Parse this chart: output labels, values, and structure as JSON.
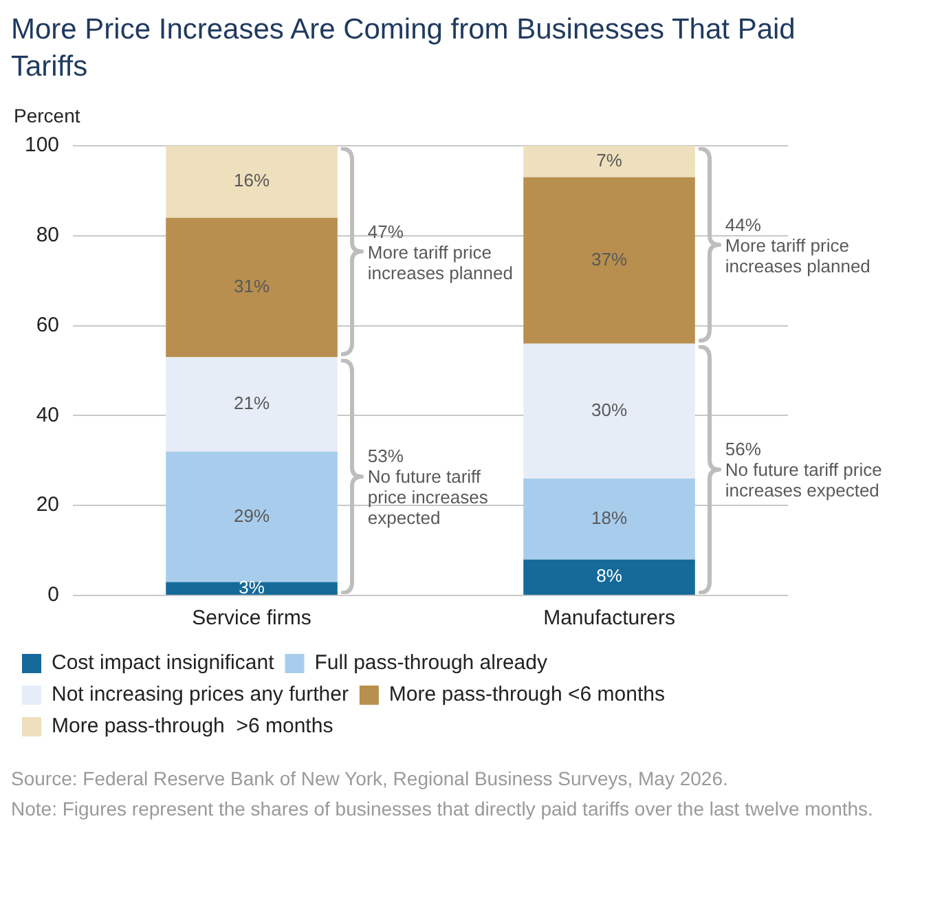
{
  "chart_data": {
    "type": "bar",
    "title": "More Price Increases Are Coming from Businesses That Paid Tariffs",
    "ylabel": "Percent",
    "categories": [
      "Service firms",
      "Manufacturers"
    ],
    "stacked": true,
    "ylim": [
      0,
      100
    ],
    "yticks": [
      0,
      20,
      40,
      60,
      80,
      100
    ],
    "grid": "y",
    "legend": "bottom",
    "series": [
      {
        "name": "Cost impact insignificant",
        "color": "#156a9a",
        "values": [
          3,
          8
        ],
        "value_labels": [
          "3%",
          "8%"
        ]
      },
      {
        "name": "Full pass-through already",
        "color": "#a8cdec",
        "values": [
          29,
          18
        ],
        "value_labels": [
          "29%",
          "18%"
        ]
      },
      {
        "name": "Not increasing prices any further",
        "color": "#e7edf7",
        "values": [
          21,
          30
        ],
        "value_labels": [
          "21%",
          "30%"
        ]
      },
      {
        "name": "More pass-through <6 months",
        "color": "#b88f4e",
        "values": [
          31,
          37
        ],
        "value_labels": [
          "31%",
          "37%"
        ]
      },
      {
        "name": "More pass-through  >6 months",
        "color": "#eee0bd",
        "values": [
          16,
          7
        ],
        "value_labels": [
          "16%",
          "7%"
        ]
      }
    ],
    "annotations": [
      "47%\nMore tariff price\nincreases planned",
      "53%\nNo future tariff\nprice increases\nexpected",
      "44%\nMore tariff price\nincreases planned",
      "56%\nNo future tariff price\nincreases expected",
      "Source: Federal Reserve Bank of New York, Regional Business Surveys, May 2026.",
      "Note: Figures represent the shares of businesses that directly paid tariffs over the last twelve months."
    ]
  }
}
